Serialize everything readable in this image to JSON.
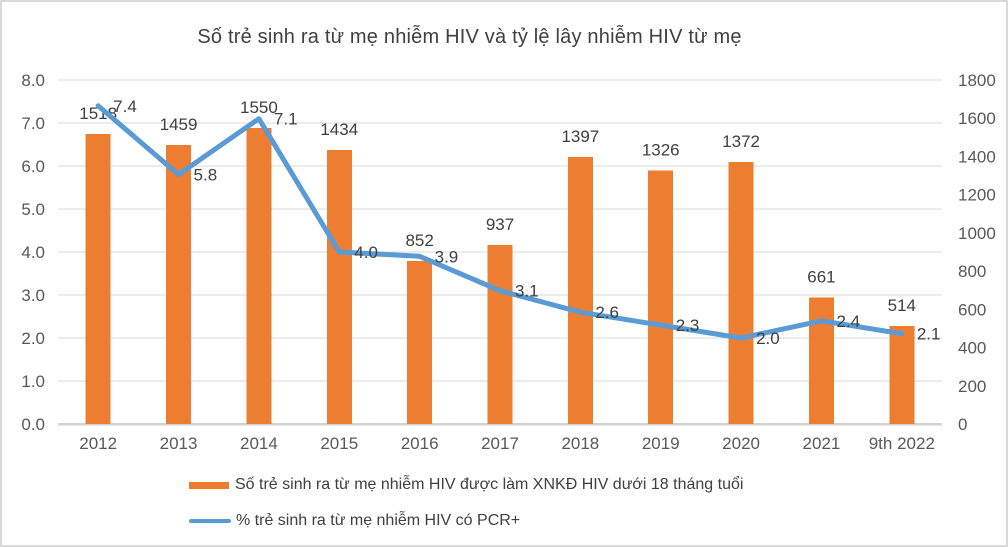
{
  "frame": {
    "background": "#ffffff",
    "border_color": "#d9d9d9"
  },
  "chart_data": {
    "type": "bar",
    "subtype": "combo-bar-line",
    "title": "Số trẻ sinh ra từ mẹ nhiễm HIV và tỷ lệ lây nhiễm HIV từ mẹ",
    "categories": [
      "2012",
      "2013",
      "2014",
      "2015",
      "2016",
      "2017",
      "2018",
      "2019",
      "2020",
      "2021",
      "9th 2022"
    ],
    "series": [
      {
        "name": "Số trẻ sinh ra từ mẹ nhiễm HIV được làm XNKĐ HIV dưới 18 tháng tuổi",
        "type": "bar",
        "axis": "right",
        "color": "#ED7D31",
        "values": [
          1518,
          1459,
          1550,
          1434,
          852,
          937,
          1397,
          1326,
          1372,
          661,
          514
        ],
        "labels": [
          "1518",
          "1459",
          "1550",
          "1434",
          "852",
          "937",
          "1397",
          "1326",
          "1372",
          "661",
          "514"
        ]
      },
      {
        "name": "% trẻ sinh ra từ mẹ nhiễm HIV có PCR+",
        "type": "line",
        "axis": "left",
        "color": "#5B9BD5",
        "values": [
          7.4,
          5.8,
          7.1,
          4.0,
          3.9,
          3.1,
          2.6,
          2.3,
          2.0,
          2.4,
          2.1
        ],
        "labels": [
          "7.4",
          "5.8",
          "7.1",
          "4.0",
          "3.9",
          "3.1",
          "2.6",
          "2.3",
          "2.0",
          "2.4",
          "2.1"
        ]
      }
    ],
    "left_axis": {
      "min": 0,
      "max": 8,
      "step": 1,
      "tick_labels": [
        "0.0",
        "1.0",
        "2.0",
        "3.0",
        "4.0",
        "5.0",
        "6.0",
        "7.0",
        "8.0"
      ]
    },
    "right_axis": {
      "min": 0,
      "max": 1800,
      "step": 200,
      "tick_labels": [
        "0",
        "200",
        "400",
        "600",
        "800",
        "1000",
        "1200",
        "1400",
        "1600",
        "1800"
      ]
    },
    "grid": true,
    "legend_position": "bottom",
    "colors": {
      "gridline": "#d9d9d9",
      "axis_line": "#d2d2d2",
      "axis_text": "#595959",
      "data_label_text": "#404040",
      "title_text": "#404040"
    }
  }
}
